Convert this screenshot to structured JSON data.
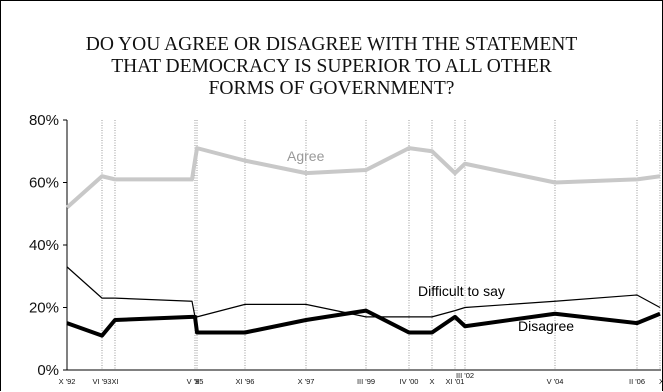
{
  "chart_data": {
    "type": "line",
    "title_lines": [
      "DO YOU AGREE OR DISAGREE WITH THE STATEMENT",
      "THAT DEMOCRACY IS SUPERIOR TO ALL OTHER",
      "FORMS OF GOVERNMENT?"
    ],
    "xlabel": "",
    "ylabel": "",
    "ylim": [
      0,
      80
    ],
    "yticks": [
      "0%",
      "20%",
      "40%",
      "60%",
      "80%"
    ],
    "grid": "vertical",
    "x": [
      "X '92",
      "VI '93",
      "XI",
      "V '95",
      "X",
      "XI '96",
      "X '97",
      "III '99",
      "IV '00",
      "X",
      "XI '01",
      "III '02",
      "V '04",
      "II '06",
      "XI"
    ],
    "series": [
      {
        "name": "Agree",
        "color": "#c8c8c8",
        "values": [
          52,
          62,
          61,
          67,
          71,
          67,
          63,
          64,
          71,
          70,
          63,
          66,
          60,
          61,
          62
        ],
        "extra_points": [
          {
            "after_index": 3,
            "value": 61
          }
        ]
      },
      {
        "name": "Difficult to say",
        "color": "#000000",
        "values": [
          33,
          23,
          23,
          17,
          17,
          21,
          21,
          17,
          17,
          17,
          19,
          20,
          22,
          24,
          20
        ],
        "extra_points": [
          {
            "after_index": 3,
            "value": 22
          }
        ]
      },
      {
        "name": "Disagree",
        "color": "#000000",
        "values": [
          15,
          11,
          16,
          17,
          12,
          12,
          16,
          19,
          12,
          12,
          17,
          14,
          18,
          15,
          18
        ],
        "extra_points": [
          {
            "after_index": 3,
            "value": 17
          }
        ]
      }
    ]
  }
}
